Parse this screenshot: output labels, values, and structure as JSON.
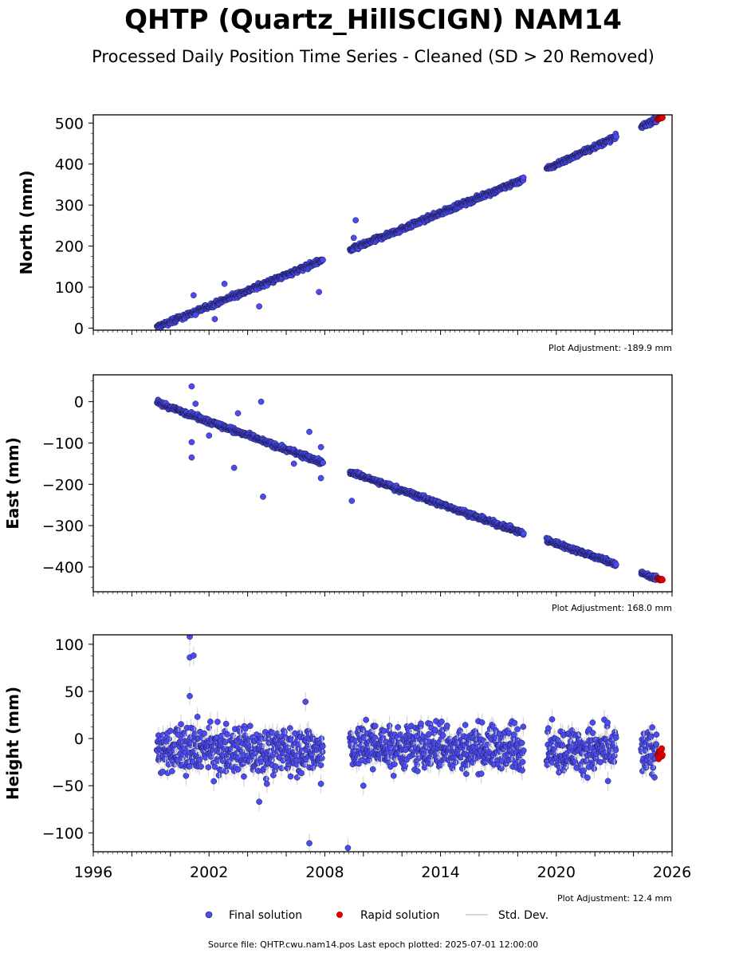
{
  "figure": {
    "title": "QHTP (Quartz_HillSCIGN) NAM14",
    "subtitle": "Processed Daily Position Time Series - Cleaned (SD > 20 Removed)",
    "source_note": "Source file: QHTP.cwu.nam14.pos  Last epoch plotted: 2025-07-01 12:00:00"
  },
  "legend": {
    "final": "Final solution",
    "rapid": "Rapid solution",
    "std": "Std. Dev."
  },
  "colors": {
    "final": "#4b4bf0",
    "rapid": "#e00000",
    "std": "#cccccc",
    "edge": "#1a1a4a"
  },
  "chart_data": [
    {
      "type": "scatter",
      "ylabel": "North (mm)",
      "xlim": [
        1996,
        2026
      ],
      "ylim": [
        -5,
        520
      ],
      "x_ticks": [
        1996,
        2002,
        2008,
        2014,
        2020,
        2026
      ],
      "y_ticks": [
        0,
        100,
        200,
        300,
        400,
        500
      ],
      "y_ticklabels": [
        "0",
        "100",
        "200",
        "300",
        "400",
        "500"
      ],
      "adjustment": "Plot Adjustment: -189.9 mm",
      "segments": [
        {
          "x0": 1999.3,
          "x1": 2007.9,
          "y0": 2,
          "y1": 166
        },
        {
          "x0": 2009.3,
          "x1": 2018.3,
          "y0": 190,
          "y1": 363
        },
        {
          "x0": 2019.5,
          "x1": 2023.1,
          "y0": 388,
          "y1": 466
        },
        {
          "x0": 2024.4,
          "x1": 2025.2,
          "y0": 492,
          "y1": 508
        }
      ],
      "noise": 3,
      "outliers": [
        [
          2001.2,
          80
        ],
        [
          2001.3,
          32
        ],
        [
          2002.3,
          22
        ],
        [
          2002.8,
          108
        ],
        [
          2004.6,
          53
        ],
        [
          2007.7,
          88
        ],
        [
          2009.6,
          263
        ],
        [
          2009.5,
          220
        ]
      ],
      "rapid": {
        "x0": 2025.25,
        "x1": 2025.5,
        "y0": 510,
        "y1": 515
      }
    },
    {
      "type": "scatter",
      "ylabel": "East (mm)",
      "xlim": [
        1996,
        2026
      ],
      "ylim": [
        -460,
        65
      ],
      "x_ticks": [
        1996,
        2002,
        2008,
        2014,
        2020,
        2026
      ],
      "y_ticks": [
        0,
        -100,
        -200,
        -300,
        -400
      ],
      "y_ticklabels": [
        "0",
        "−100",
        "−200",
        "−300",
        "−400"
      ],
      "adjustment": "Plot Adjustment: 168.0 mm",
      "segments": [
        {
          "x0": 1999.3,
          "x1": 2007.9,
          "y0": -2,
          "y1": -148
        },
        {
          "x0": 2009.3,
          "x1": 2018.3,
          "y0": -170,
          "y1": -319
        },
        {
          "x0": 2019.5,
          "x1": 2023.1,
          "y0": -335,
          "y1": -393
        },
        {
          "x0": 2024.4,
          "x1": 2025.2,
          "y0": -415,
          "y1": -428
        }
      ],
      "noise": 3,
      "outliers": [
        [
          2001.1,
          37
        ],
        [
          2001.3,
          -5
        ],
        [
          2001.1,
          -98
        ],
        [
          2001.1,
          -135
        ],
        [
          2002.0,
          -82
        ],
        [
          2003.3,
          -160
        ],
        [
          2003.5,
          -28
        ],
        [
          2004.7,
          0
        ],
        [
          2004.8,
          -230
        ],
        [
          2007.2,
          -73
        ],
        [
          2007.8,
          -110
        ],
        [
          2007.8,
          -185
        ],
        [
          2009.4,
          -240
        ],
        [
          2006.4,
          -150
        ]
      ],
      "rapid": {
        "x0": 2025.25,
        "x1": 2025.5,
        "y0": -428,
        "y1": -432
      }
    },
    {
      "type": "scatter",
      "ylabel": "Height (mm)",
      "xlim": [
        1996,
        2026
      ],
      "ylim": [
        -120,
        110
      ],
      "x_ticks": [
        1996,
        2002,
        2008,
        2014,
        2020,
        2026
      ],
      "x_ticklabels": [
        "1996",
        "2002",
        "2008",
        "2014",
        "2020",
        "2026"
      ],
      "y_ticks": [
        100,
        50,
        0,
        -50,
        -100
      ],
      "y_ticklabels": [
        "100",
        "50",
        "0",
        "−50",
        "−100"
      ],
      "adjustment": "Plot Adjustment: 12.4 mm",
      "segments": [
        {
          "x0": 1999.3,
          "x1": 2007.9,
          "y0": -12,
          "y1": -12
        },
        {
          "x0": 2009.3,
          "x1": 2018.3,
          "y0": -10,
          "y1": -10
        },
        {
          "x0": 2019.5,
          "x1": 2023.1,
          "y0": -12,
          "y1": -12
        },
        {
          "x0": 2024.4,
          "x1": 2025.2,
          "y0": -15,
          "y1": -15
        }
      ],
      "noise": 12,
      "outliers": [
        [
          2001.0,
          108
        ],
        [
          2001.0,
          86
        ],
        [
          2001.2,
          88
        ],
        [
          2001.0,
          45
        ],
        [
          2001.4,
          23
        ],
        [
          2004.6,
          -67
        ],
        [
          2005.0,
          -48
        ],
        [
          2007.0,
          39
        ],
        [
          2007.2,
          -111
        ],
        [
          2007.8,
          -48
        ],
        [
          2010.0,
          -50
        ],
        [
          2009.2,
          -116
        ]
      ],
      "rapid": {
        "x0": 2025.25,
        "x1": 2025.5,
        "y0": -15,
        "y1": -15
      }
    }
  ]
}
